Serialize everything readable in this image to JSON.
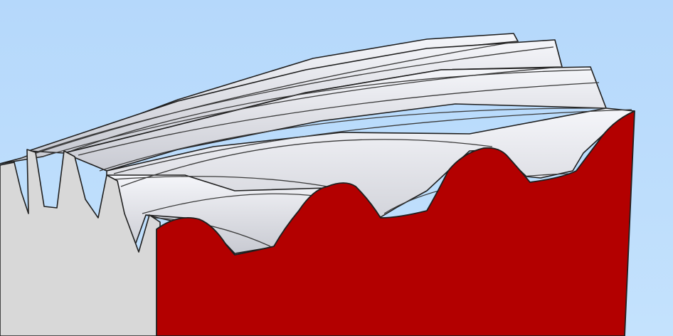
{
  "scene": {
    "subject": "helical-gear-section-render",
    "colors": {
      "background_top": "#b5d8fb",
      "background_bottom": "#c4e2fd",
      "tooth_face_light": "#f5f6fa",
      "tooth_face_mid": "#dcdde3",
      "tooth_face_shade": "#c8cad2",
      "gear_body_gray": "#d8d8d8",
      "section_cut_red": "#b30000",
      "edge_line": "#1f1f1f"
    },
    "icons": [
      "gear-icon"
    ]
  }
}
